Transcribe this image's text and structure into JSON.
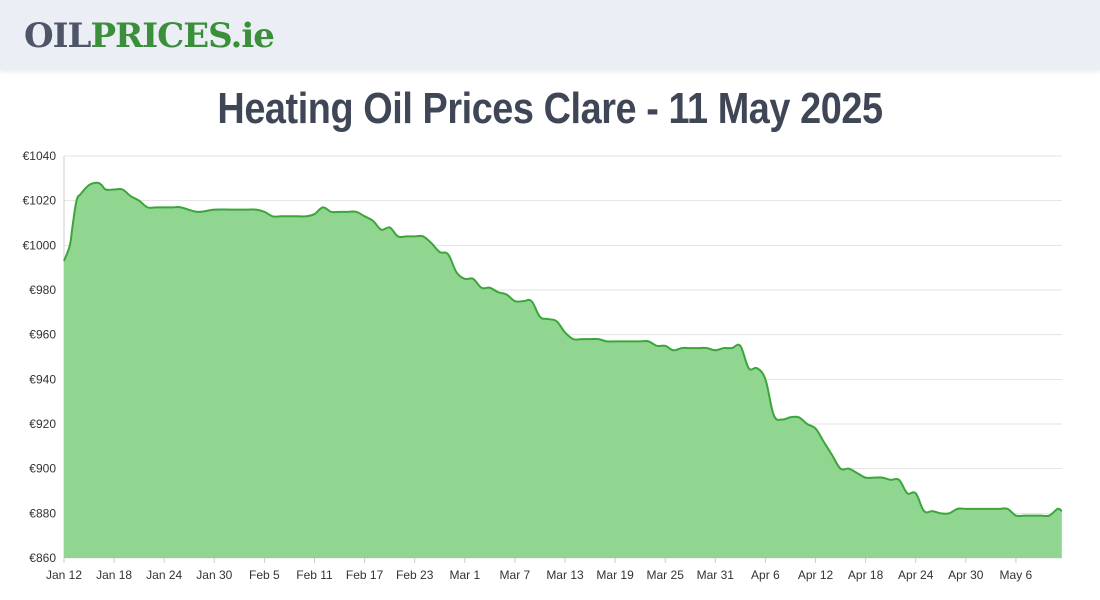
{
  "header": {
    "logo": {
      "part1": "OIL",
      "part2": "PRICES",
      "part3": ".ie"
    }
  },
  "page": {
    "title": "Heating Oil Prices Clare - 11 May 2025"
  },
  "colors": {
    "line": "#3aa63a",
    "fill": "#90d690",
    "grid": "#e3e3e3",
    "header_bg": "#eceef5"
  },
  "chart_data": {
    "type": "area",
    "title": "Heating Oil Prices Clare - 11 May 2025",
    "ylim": [
      860,
      1040
    ],
    "y_ticks": [
      "€1040",
      "€1020",
      "€1000",
      "€980",
      "€960",
      "€940",
      "€920",
      "€900",
      "€880",
      "€860"
    ],
    "y_tick_values": [
      1040,
      1020,
      1000,
      980,
      960,
      940,
      920,
      900,
      880,
      860
    ],
    "x_ticks": [
      "Jan 12",
      "Jan 18",
      "Jan 24",
      "Jan 30",
      "Feb 5",
      "Feb 11",
      "Feb 17",
      "Feb 23",
      "Mar 1",
      "Mar 7",
      "Mar 13",
      "Mar 19",
      "Mar 25",
      "Mar 31",
      "Apr 6",
      "Apr 12",
      "Apr 18",
      "Apr 24",
      "Apr 30",
      "May 6"
    ],
    "grid": true,
    "series": [
      {
        "x": [
          0,
          0.7,
          1,
          1.5,
          2,
          3,
          4,
          4.5,
          5,
          6,
          7,
          8,
          9,
          10,
          11,
          12,
          13,
          14,
          16,
          18,
          20,
          21,
          22,
          23,
          24,
          25,
          26,
          27,
          28,
          29,
          30,
          31,
          32,
          33,
          34,
          35,
          36,
          37,
          38,
          39,
          40,
          41,
          42,
          43,
          44,
          45,
          46,
          47,
          48,
          49,
          50,
          51,
          52,
          53,
          54,
          55,
          56,
          57,
          58,
          59,
          60,
          61,
          62,
          63,
          64,
          65,
          66,
          67,
          68,
          69,
          70,
          71,
          72,
          73,
          74,
          75,
          76,
          77,
          78,
          79,
          80,
          81,
          82,
          83,
          84,
          85,
          86,
          87,
          88,
          89,
          90,
          91,
          92,
          93,
          94,
          95,
          96,
          97,
          98,
          99,
          100,
          101,
          102,
          103,
          104,
          105,
          106,
          107,
          108,
          109,
          110,
          111,
          112,
          113,
          114,
          115,
          116,
          117,
          118,
          119,
          119.5
        ],
        "y": [
          993,
          1000,
          1008,
          1020,
          1023,
          1027,
          1028,
          1027,
          1025,
          1025,
          1025,
          1022,
          1020,
          1017,
          1017,
          1017,
          1017,
          1017,
          1015,
          1016,
          1016,
          1016,
          1016,
          1016,
          1015,
          1013,
          1013,
          1013,
          1013,
          1013,
          1014,
          1017,
          1015,
          1015,
          1015,
          1015,
          1013,
          1011,
          1007,
          1008,
          1004,
          1004,
          1004,
          1004,
          1001,
          997,
          996,
          988,
          985,
          985,
          981,
          981,
          979,
          978,
          975,
          975,
          975,
          968,
          967,
          966,
          961,
          958,
          958,
          958,
          958,
          957,
          957,
          957,
          957,
          957,
          957,
          955,
          955,
          953,
          954,
          954,
          954,
          954,
          953,
          954,
          954,
          955,
          945,
          945,
          940,
          924,
          922,
          923,
          923,
          920,
          918,
          912,
          906,
          900,
          900,
          898,
          896,
          896,
          896,
          895,
          895,
          889,
          889,
          881,
          881,
          880,
          880,
          882,
          882,
          882,
          882,
          882,
          882,
          882,
          879,
          879,
          879,
          879,
          879,
          882,
          881
        ]
      }
    ]
  }
}
